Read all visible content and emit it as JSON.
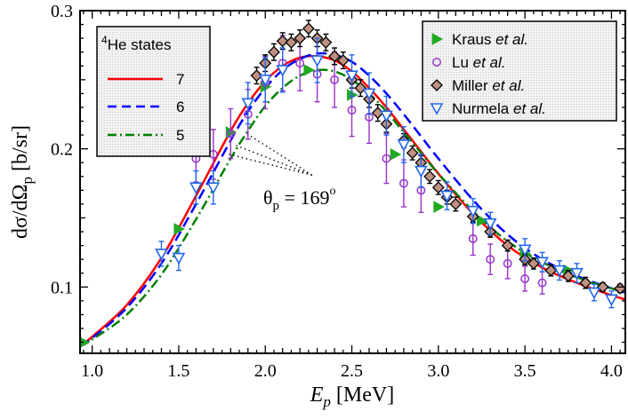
{
  "chart_data": {
    "type": "scatter",
    "title": "",
    "xlabel": "E",
    "xlabel_sub": "p",
    "xlabel_units": "[MeV]",
    "ylabel": "dσ/dΩ",
    "ylabel_sub": "p",
    "ylabel_units": "[b/sr]",
    "xlim": [
      0.93,
      4.08
    ],
    "ylim": [
      0.052,
      0.3
    ],
    "x_ticks": [
      1.0,
      1.5,
      2.0,
      2.5,
      3.0,
      3.5,
      4.0
    ],
    "x_tick_labels": [
      "1.0",
      "1.5",
      "2.0",
      "2.5",
      "3.0",
      "3.5",
      "4.0"
    ],
    "y_ticks": [
      0.1,
      0.2,
      0.3
    ],
    "y_tick_labels": [
      "0.1",
      "0.2",
      "0.3"
    ],
    "annotation": {
      "text_main": "θ",
      "text_sub": "p",
      "text_rest": " = 169",
      "text_sup": "o",
      "pointer_targets": [
        [
          1.88,
          0.212
        ],
        [
          1.82,
          0.203
        ],
        [
          1.79,
          0.196
        ]
      ],
      "pointer_origin": [
        2.27,
        0.181
      ]
    },
    "legend_left": {
      "title_sup": "4",
      "title": "He states",
      "entries": [
        {
          "label": "7",
          "color": "#ff0000",
          "style": "solid"
        },
        {
          "label": "6",
          "color": "#0000ff",
          "style": "dashed"
        },
        {
          "label": "5",
          "color": "#008000",
          "style": "dashdot"
        }
      ]
    },
    "legend_right": {
      "entries": [
        {
          "name": "Kraus",
          "suffix": "et al.",
          "color": "#22aa22",
          "marker": "triangle-right"
        },
        {
          "name": "Lu",
          "suffix": "et al.",
          "color": "#9933cc",
          "marker": "circle"
        },
        {
          "name": "Miller",
          "suffix": "et al.",
          "color": "#333333",
          "marker": "diamond"
        },
        {
          "name": "Nurmela",
          "suffix": "et al.",
          "color": "#2266ee",
          "marker": "triangle-down"
        }
      ]
    },
    "curves": [
      {
        "name": "7",
        "color": "#ff0000",
        "style": "solid",
        "x": [
          0.93,
          1.0,
          1.2,
          1.4,
          1.6,
          1.8,
          1.9,
          2.0,
          2.1,
          2.2,
          2.3,
          2.4,
          2.5,
          2.6,
          2.7,
          2.8,
          2.9,
          3.0,
          3.2,
          3.4,
          3.6,
          3.8,
          4.0,
          4.08
        ],
        "y": [
          0.057,
          0.064,
          0.087,
          0.121,
          0.166,
          0.213,
          0.233,
          0.249,
          0.26,
          0.266,
          0.267,
          0.264,
          0.256,
          0.244,
          0.23,
          0.214,
          0.198,
          0.182,
          0.153,
          0.13,
          0.114,
          0.103,
          0.094,
          0.091
        ]
      },
      {
        "name": "6",
        "color": "#0000ff",
        "style": "dashed",
        "x": [
          0.93,
          1.0,
          1.2,
          1.4,
          1.6,
          1.8,
          1.9,
          2.0,
          2.1,
          2.2,
          2.3,
          2.4,
          2.5,
          2.6,
          2.7,
          2.8,
          2.9,
          3.0,
          3.2,
          3.4,
          3.6,
          3.8,
          4.0,
          4.08
        ],
        "y": [
          0.057,
          0.063,
          0.085,
          0.117,
          0.16,
          0.206,
          0.227,
          0.244,
          0.257,
          0.265,
          0.269,
          0.268,
          0.263,
          0.253,
          0.24,
          0.225,
          0.209,
          0.193,
          0.163,
          0.138,
          0.12,
          0.108,
          0.099,
          0.096
        ]
      },
      {
        "name": "5",
        "color": "#008000",
        "style": "dashdot",
        "x": [
          0.93,
          1.0,
          1.2,
          1.4,
          1.6,
          1.8,
          1.9,
          2.0,
          2.1,
          2.2,
          2.3,
          2.4,
          2.5,
          2.6,
          2.7,
          2.8,
          2.9,
          3.0,
          3.2,
          3.4,
          3.6,
          3.8,
          4.0,
          4.08
        ],
        "y": [
          0.057,
          0.062,
          0.08,
          0.109,
          0.149,
          0.193,
          0.213,
          0.231,
          0.244,
          0.253,
          0.257,
          0.256,
          0.25,
          0.24,
          0.227,
          0.212,
          0.197,
          0.182,
          0.155,
          0.133,
          0.118,
          0.107,
          0.099,
          0.097
        ]
      }
    ],
    "series": [
      {
        "name": "Kraus et al.",
        "marker": "triangle-right",
        "color": "#22aa22",
        "points": [
          [
            0.95,
            0.06,
            0
          ],
          [
            1.5,
            0.142,
            0
          ],
          [
            1.8,
            0.212,
            0
          ],
          [
            2.0,
            0.245,
            0
          ],
          [
            2.25,
            0.257,
            0
          ],
          [
            2.5,
            0.239,
            0
          ],
          [
            2.75,
            0.196,
            0
          ],
          [
            3.0,
            0.158,
            0
          ],
          [
            3.25,
            0.148,
            0
          ],
          [
            3.5,
            0.124,
            0
          ],
          [
            3.75,
            0.112,
            0
          ]
        ]
      },
      {
        "name": "Lu et al.",
        "marker": "circle",
        "color": "#9933cc",
        "points": [
          [
            1.6,
            0.193,
            0.017
          ],
          [
            1.7,
            0.196,
            0.018
          ],
          [
            1.8,
            0.211,
            0.018
          ],
          [
            1.9,
            0.225,
            0.018
          ],
          [
            2.0,
            0.248,
            0.019
          ],
          [
            2.1,
            0.262,
            0.02
          ],
          [
            2.2,
            0.262,
            0.02
          ],
          [
            2.3,
            0.254,
            0.02
          ],
          [
            2.4,
            0.25,
            0.02
          ],
          [
            2.5,
            0.228,
            0.019
          ],
          [
            2.6,
            0.223,
            0.019
          ],
          [
            2.7,
            0.193,
            0.018
          ],
          [
            2.8,
            0.175,
            0.017
          ],
          [
            2.9,
            0.17,
            0.016
          ],
          [
            3.2,
            0.135,
            0.012
          ],
          [
            3.3,
            0.12,
            0.011
          ],
          [
            3.4,
            0.117,
            0.011
          ],
          [
            3.5,
            0.106,
            0.009
          ],
          [
            3.6,
            0.103,
            0.008
          ]
        ]
      },
      {
        "name": "Miller et al.",
        "marker": "diamond",
        "color": "#333333",
        "points": [
          [
            1.95,
            0.253,
            0.006
          ],
          [
            2.0,
            0.262,
            0.006
          ],
          [
            2.05,
            0.27,
            0.006
          ],
          [
            2.1,
            0.278,
            0.006
          ],
          [
            2.15,
            0.277,
            0.006
          ],
          [
            2.2,
            0.28,
            0.006
          ],
          [
            2.25,
            0.287,
            0.006
          ],
          [
            2.3,
            0.28,
            0.006
          ],
          [
            2.35,
            0.277,
            0.006
          ],
          [
            2.4,
            0.267,
            0.006
          ],
          [
            2.45,
            0.264,
            0.006
          ],
          [
            2.5,
            0.25,
            0.006
          ],
          [
            2.55,
            0.244,
            0.006
          ],
          [
            2.6,
            0.236,
            0.006
          ],
          [
            2.65,
            0.226,
            0.006
          ],
          [
            2.7,
            0.218,
            0.006
          ],
          [
            2.8,
            0.206,
            0.005
          ],
          [
            2.85,
            0.197,
            0.005
          ],
          [
            2.9,
            0.19,
            0.005
          ],
          [
            2.95,
            0.18,
            0.005
          ],
          [
            3.0,
            0.172,
            0.005
          ],
          [
            3.05,
            0.165,
            0.005
          ],
          [
            3.1,
            0.16,
            0.005
          ],
          [
            3.2,
            0.151,
            0.004
          ],
          [
            3.3,
            0.14,
            0.004
          ],
          [
            3.4,
            0.13,
            0.004
          ],
          [
            3.5,
            0.12,
            0.004
          ],
          [
            3.55,
            0.117,
            0.004
          ],
          [
            3.65,
            0.112,
            0.004
          ],
          [
            3.75,
            0.108,
            0.004
          ],
          [
            3.85,
            0.103,
            0.004
          ],
          [
            3.95,
            0.1,
            0.003
          ],
          [
            4.05,
            0.099,
            0.003
          ]
        ]
      },
      {
        "name": "Nurmela et al.",
        "marker": "triangle-down",
        "color": "#2266ee",
        "points": [
          [
            1.4,
            0.124,
            0.009
          ],
          [
            1.5,
            0.121,
            0.009
          ],
          [
            1.6,
            0.172,
            0.012
          ],
          [
            1.7,
            0.172,
            0.012
          ],
          [
            1.9,
            0.233,
            0.015
          ],
          [
            2.0,
            0.25,
            0.016
          ],
          [
            2.1,
            0.257,
            0.016
          ],
          [
            2.3,
            0.264,
            0.016
          ],
          [
            2.5,
            0.253,
            0.015
          ],
          [
            2.6,
            0.24,
            0.015
          ],
          [
            2.7,
            0.224,
            0.014
          ],
          [
            2.8,
            0.203,
            0.013
          ],
          [
            2.9,
            0.184,
            0.012
          ],
          [
            3.05,
            0.166,
            0.01
          ],
          [
            3.2,
            0.155,
            0.009
          ],
          [
            3.3,
            0.146,
            0.008
          ],
          [
            3.5,
            0.127,
            0.008
          ],
          [
            3.6,
            0.118,
            0.007
          ],
          [
            3.7,
            0.112,
            0.007
          ],
          [
            3.8,
            0.11,
            0.007
          ],
          [
            3.9,
            0.096,
            0.006
          ],
          [
            4.0,
            0.091,
            0.006
          ]
        ]
      }
    ]
  }
}
